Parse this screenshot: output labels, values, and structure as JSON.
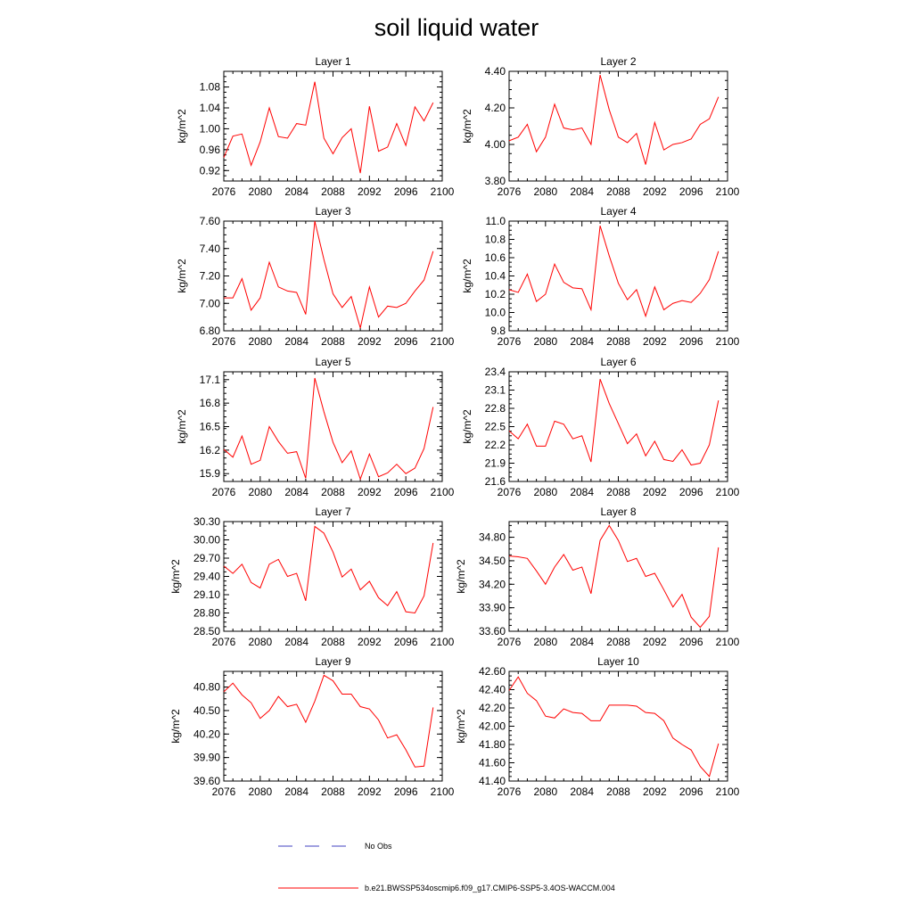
{
  "figure": {
    "title": "soil liquid water"
  },
  "legend": {
    "entries": [
      {
        "label": "No Obs",
        "color": "#4040c0",
        "style": "dashed"
      },
      {
        "label": "b.e21.BWSSP534oscmip6.f09_g17.CMIP6-SSP5-3.4OS-WACCM.004",
        "color": "#ff0000",
        "style": "solid"
      }
    ]
  },
  "chart_data": [
    {
      "type": "line",
      "title": "Layer 1",
      "ylabel": "kg/m^2",
      "xlim": [
        2076,
        2100
      ],
      "ylim": [
        0.9,
        1.11
      ],
      "xticks": [
        "2076",
        "2080",
        "2084",
        "2088",
        "2092",
        "2096",
        "2100"
      ],
      "yticks": [
        "0.92",
        "0.96",
        "1.00",
        "1.04",
        "1.08"
      ],
      "x": [
        2076,
        2077,
        2078,
        2079,
        2080,
        2081,
        2082,
        2083,
        2084,
        2085,
        2086,
        2087,
        2088,
        2089,
        2090,
        2091,
        2092,
        2093,
        2094,
        2095,
        2096,
        2097,
        2098,
        2099
      ],
      "series": [
        {
          "color": "#ff0000",
          "values": [
            0.945,
            0.986,
            0.99,
            0.93,
            0.975,
            1.04,
            0.985,
            0.982,
            1.01,
            1.007,
            1.09,
            0.982,
            0.952,
            0.983,
            1.0,
            0.915,
            1.043,
            0.957,
            0.965,
            1.01,
            0.968,
            1.042,
            1.015,
            1.05
          ]
        }
      ]
    },
    {
      "type": "line",
      "title": "Layer 2",
      "ylabel": "kg/m^2",
      "xlim": [
        2076,
        2100
      ],
      "ylim": [
        3.8,
        4.4
      ],
      "xticks": [
        "2076",
        "2080",
        "2084",
        "2088",
        "2092",
        "2096",
        "2100"
      ],
      "yticks": [
        "3.80",
        "4.00",
        "4.20",
        "4.40"
      ],
      "x": [
        2076,
        2077,
        2078,
        2079,
        2080,
        2081,
        2082,
        2083,
        2084,
        2085,
        2086,
        2087,
        2088,
        2089,
        2090,
        2091,
        2092,
        2093,
        2094,
        2095,
        2096,
        2097,
        2098,
        2099
      ],
      "series": [
        {
          "color": "#ff0000",
          "values": [
            4.02,
            4.04,
            4.11,
            3.96,
            4.04,
            4.22,
            4.09,
            4.08,
            4.09,
            4.0,
            4.38,
            4.19,
            4.04,
            4.01,
            4.06,
            3.89,
            4.12,
            3.97,
            4.0,
            4.01,
            4.03,
            4.11,
            4.14,
            4.26
          ]
        }
      ]
    },
    {
      "type": "line",
      "title": "Layer 3",
      "ylabel": "kg/m^2",
      "xlim": [
        2076,
        2100
      ],
      "ylim": [
        6.8,
        7.6
      ],
      "xticks": [
        "2076",
        "2080",
        "2084",
        "2088",
        "2092",
        "2096",
        "2100"
      ],
      "yticks": [
        "6.80",
        "7.00",
        "7.20",
        "7.40",
        "7.60"
      ],
      "x": [
        2076,
        2077,
        2078,
        2079,
        2080,
        2081,
        2082,
        2083,
        2084,
        2085,
        2086,
        2087,
        2088,
        2089,
        2090,
        2091,
        2092,
        2093,
        2094,
        2095,
        2096,
        2097,
        2098,
        2099
      ],
      "series": [
        {
          "color": "#ff0000",
          "values": [
            7.04,
            7.04,
            7.18,
            6.95,
            7.04,
            7.3,
            7.12,
            7.09,
            7.08,
            6.92,
            7.6,
            7.32,
            7.07,
            6.97,
            7.05,
            6.82,
            7.12,
            6.9,
            6.98,
            6.97,
            7.0,
            7.09,
            7.17,
            7.38
          ]
        }
      ]
    },
    {
      "type": "line",
      "title": "Layer 4",
      "ylabel": "kg/m^2",
      "xlim": [
        2076,
        2100
      ],
      "ylim": [
        9.8,
        11.0
      ],
      "xticks": [
        "2076",
        "2080",
        "2084",
        "2088",
        "2092",
        "2096",
        "2100"
      ],
      "yticks": [
        "9.8",
        "10.0",
        "10.2",
        "10.4",
        "10.6",
        "10.8",
        "11.0"
      ],
      "x": [
        2076,
        2077,
        2078,
        2079,
        2080,
        2081,
        2082,
        2083,
        2084,
        2085,
        2086,
        2087,
        2088,
        2089,
        2090,
        2091,
        2092,
        2093,
        2094,
        2095,
        2096,
        2097,
        2098,
        2099
      ],
      "series": [
        {
          "color": "#ff0000",
          "values": [
            10.25,
            10.22,
            10.42,
            10.12,
            10.2,
            10.53,
            10.33,
            10.27,
            10.26,
            10.03,
            10.95,
            10.62,
            10.32,
            10.14,
            10.25,
            9.96,
            10.28,
            10.03,
            10.1,
            10.13,
            10.11,
            10.21,
            10.36,
            10.67
          ]
        }
      ]
    },
    {
      "type": "line",
      "title": "Layer 5",
      "ylabel": "kg/m^2",
      "xlim": [
        2076,
        2100
      ],
      "ylim": [
        15.8,
        17.2
      ],
      "xticks": [
        "2076",
        "2080",
        "2084",
        "2088",
        "2092",
        "2096",
        "2100"
      ],
      "yticks": [
        "15.9",
        "16.2",
        "16.5",
        "16.8",
        "17.1"
      ],
      "x": [
        2076,
        2077,
        2078,
        2079,
        2080,
        2081,
        2082,
        2083,
        2084,
        2085,
        2086,
        2087,
        2088,
        2089,
        2090,
        2091,
        2092,
        2093,
        2094,
        2095,
        2096,
        2097,
        2098,
        2099
      ],
      "series": [
        {
          "color": "#ff0000",
          "values": [
            16.21,
            16.11,
            16.38,
            16.02,
            16.07,
            16.5,
            16.31,
            16.16,
            16.18,
            15.84,
            17.12,
            16.69,
            16.3,
            16.04,
            16.19,
            15.83,
            16.15,
            15.86,
            15.91,
            16.02,
            15.9,
            15.97,
            16.22,
            16.75
          ]
        }
      ]
    },
    {
      "type": "line",
      "title": "Layer 6",
      "ylabel": "kg/m^2",
      "xlim": [
        2076,
        2100
      ],
      "ylim": [
        21.6,
        23.4
      ],
      "xticks": [
        "2076",
        "2080",
        "2084",
        "2088",
        "2092",
        "2096",
        "2100"
      ],
      "yticks": [
        "21.6",
        "21.9",
        "22.2",
        "22.5",
        "22.8",
        "23.1",
        "23.4"
      ],
      "x": [
        2076,
        2077,
        2078,
        2079,
        2080,
        2081,
        2082,
        2083,
        2084,
        2085,
        2086,
        2087,
        2088,
        2089,
        2090,
        2091,
        2092,
        2093,
        2094,
        2095,
        2096,
        2097,
        2098,
        2099
      ],
      "series": [
        {
          "color": "#ff0000",
          "values": [
            22.43,
            22.3,
            22.54,
            22.18,
            22.18,
            22.59,
            22.54,
            22.3,
            22.35,
            21.92,
            23.28,
            22.88,
            22.55,
            22.22,
            22.38,
            22.02,
            22.26,
            21.96,
            21.93,
            22.12,
            21.87,
            21.9,
            22.2,
            22.93
          ]
        }
      ]
    },
    {
      "type": "line",
      "title": "Layer 7",
      "ylabel": "kg/m^2",
      "xlim": [
        2076,
        2100
      ],
      "ylim": [
        28.5,
        30.3
      ],
      "xticks": [
        "2076",
        "2080",
        "2084",
        "2088",
        "2092",
        "2096",
        "2100"
      ],
      "yticks": [
        "28.50",
        "28.80",
        "29.10",
        "29.40",
        "29.70",
        "30.00",
        "30.30"
      ],
      "x": [
        2076,
        2077,
        2078,
        2079,
        2080,
        2081,
        2082,
        2083,
        2084,
        2085,
        2086,
        2087,
        2088,
        2089,
        2090,
        2091,
        2092,
        2093,
        2094,
        2095,
        2096,
        2097,
        2098,
        2099
      ],
      "series": [
        {
          "color": "#ff0000",
          "values": [
            29.57,
            29.45,
            29.6,
            29.3,
            29.21,
            29.6,
            29.68,
            29.4,
            29.45,
            29.0,
            30.22,
            30.11,
            29.8,
            29.39,
            29.52,
            29.18,
            29.32,
            29.05,
            28.92,
            29.15,
            28.82,
            28.8,
            29.08,
            29.95
          ]
        }
      ]
    },
    {
      "type": "line",
      "title": "Layer 8",
      "ylabel": "kg/m^2",
      "xlim": [
        2076,
        2100
      ],
      "ylim": [
        33.6,
        35.0
      ],
      "xticks": [
        "2076",
        "2080",
        "2084",
        "2088",
        "2092",
        "2096",
        "2100"
      ],
      "yticks": [
        "33.60",
        "33.90",
        "34.20",
        "34.50",
        "34.80"
      ],
      "x": [
        2076,
        2077,
        2078,
        2079,
        2080,
        2081,
        2082,
        2083,
        2084,
        2085,
        2086,
        2087,
        2088,
        2089,
        2090,
        2091,
        2092,
        2093,
        2094,
        2095,
        2096,
        2097,
        2098,
        2099
      ],
      "series": [
        {
          "color": "#ff0000",
          "values": [
            34.56,
            34.55,
            34.53,
            34.37,
            34.2,
            34.42,
            34.58,
            34.38,
            34.42,
            34.08,
            34.76,
            34.95,
            34.76,
            34.49,
            34.53,
            34.3,
            34.34,
            34.13,
            33.91,
            34.07,
            33.78,
            33.65,
            33.79,
            34.67
          ]
        }
      ]
    },
    {
      "type": "line",
      "title": "Layer 9",
      "ylabel": "kg/m^2",
      "xlim": [
        2076,
        2100
      ],
      "ylim": [
        39.6,
        41.0
      ],
      "xticks": [
        "2076",
        "2080",
        "2084",
        "2088",
        "2092",
        "2096",
        "2100"
      ],
      "yticks": [
        "39.60",
        "39.90",
        "40.20",
        "40.50",
        "40.80"
      ],
      "x": [
        2076,
        2077,
        2078,
        2079,
        2080,
        2081,
        2082,
        2083,
        2084,
        2085,
        2086,
        2087,
        2088,
        2089,
        2090,
        2091,
        2092,
        2093,
        2094,
        2095,
        2096,
        2097,
        2098,
        2099
      ],
      "series": [
        {
          "color": "#ff0000",
          "values": [
            40.74,
            40.85,
            40.7,
            40.6,
            40.4,
            40.5,
            40.68,
            40.55,
            40.58,
            40.35,
            40.62,
            40.95,
            40.88,
            40.71,
            40.71,
            40.55,
            40.52,
            40.38,
            40.15,
            40.19,
            40.0,
            39.78,
            39.79,
            40.54
          ]
        }
      ]
    },
    {
      "type": "line",
      "title": "Layer 10",
      "ylabel": "kg/m^2",
      "xlim": [
        2076,
        2100
      ],
      "ylim": [
        41.4,
        42.6
      ],
      "xticks": [
        "2076",
        "2080",
        "2084",
        "2088",
        "2092",
        "2096",
        "2100"
      ],
      "yticks": [
        "41.40",
        "41.60",
        "41.80",
        "42.00",
        "42.20",
        "42.40",
        "42.60"
      ],
      "x": [
        2076,
        2077,
        2078,
        2079,
        2080,
        2081,
        2082,
        2083,
        2084,
        2085,
        2086,
        2087,
        2088,
        2089,
        2090,
        2091,
        2092,
        2093,
        2094,
        2095,
        2096,
        2097,
        2098,
        2099
      ],
      "series": [
        {
          "color": "#ff0000",
          "values": [
            42.39,
            42.54,
            42.36,
            42.28,
            42.11,
            42.09,
            42.19,
            42.15,
            42.14,
            42.06,
            42.06,
            42.23,
            42.23,
            42.23,
            42.22,
            42.15,
            42.14,
            42.06,
            41.87,
            41.8,
            41.74,
            41.56,
            41.45,
            41.81
          ]
        }
      ]
    }
  ]
}
